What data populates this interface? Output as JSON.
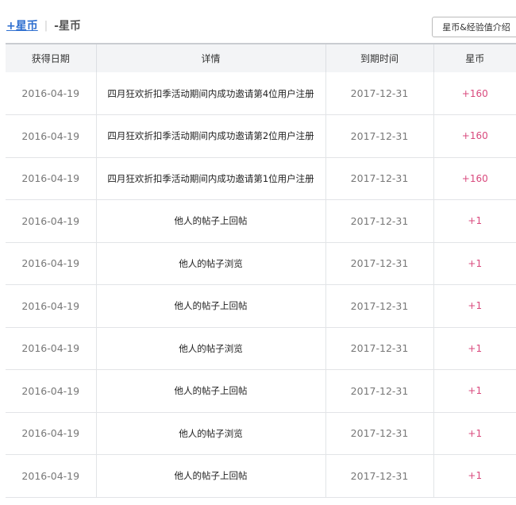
{
  "tabs": {
    "plus": "+星币",
    "minus": "-星币",
    "separator": "|"
  },
  "intro_button": "星币&经验值介绍",
  "table": {
    "headers": [
      "获得日期",
      "详情",
      "到期时间",
      "星币"
    ],
    "rows": [
      [
        "2016-04-19",
        "四月狂欢折扣季活动期间内成功邀请第4位用户注册",
        "2017-12-31",
        "+160"
      ],
      [
        "2016-04-19",
        "四月狂欢折扣季活动期间内成功邀请第2位用户注册",
        "2017-12-31",
        "+160"
      ],
      [
        "2016-04-19",
        "四月狂欢折扣季活动期间内成功邀请第1位用户注册",
        "2017-12-31",
        "+160"
      ],
      [
        "2016-04-19",
        "他人的帖子上回帖",
        "2017-12-31",
        "+1"
      ],
      [
        "2016-04-19",
        "他人的帖子浏览",
        "2017-12-31",
        "+1"
      ],
      [
        "2016-04-19",
        "他人的帖子上回帖",
        "2017-12-31",
        "+1"
      ],
      [
        "2016-04-19",
        "他人的帖子浏览",
        "2017-12-31",
        "+1"
      ],
      [
        "2016-04-19",
        "他人的帖子上回帖",
        "2017-12-31",
        "+1"
      ],
      [
        "2016-04-19",
        "他人的帖子浏览",
        "2017-12-31",
        "+1"
      ],
      [
        "2016-04-19",
        "他人的帖子上回帖",
        "2017-12-31",
        "+1"
      ]
    ]
  },
  "colors": {
    "link": "#2f6fd0",
    "coin": "#d9497d"
  }
}
